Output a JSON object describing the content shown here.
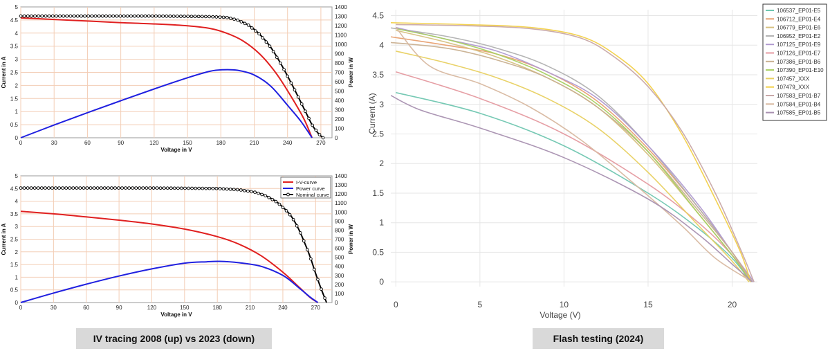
{
  "captions": {
    "left": "IV tracing 2008 (up) vs 2023 (down)",
    "right": "Flash testing (2024)"
  },
  "chart_data": [
    {
      "id": "iv2008",
      "type": "line",
      "title": "",
      "xlabel": "Voltage in V",
      "ylabel": "Current in A",
      "y2label": "Power in W",
      "xlim": [
        0,
        280
      ],
      "ylim": [
        0,
        5
      ],
      "y2lim": [
        0,
        1400
      ],
      "xticks": [
        "0",
        "30",
        "60",
        "90",
        "120",
        "150",
        "180",
        "210",
        "240",
        "270"
      ],
      "yticks": [
        "0",
        "0.5",
        "1",
        "1.5",
        "2",
        "2.5",
        "3",
        "3.5",
        "4",
        "4.5",
        "5"
      ],
      "y2ticks": [
        "0",
        "100",
        "200",
        "300",
        "400",
        "500",
        "600",
        "700",
        "800",
        "900",
        "1000",
        "1100",
        "1200",
        "1300",
        "1400"
      ],
      "legend": null,
      "series": [
        {
          "name": "I-V-curve",
          "color": "#e02020",
          "axis": "left",
          "x": [
            0,
            30,
            60,
            90,
            120,
            150,
            170,
            185,
            200,
            215,
            230,
            245,
            255,
            262
          ],
          "y": [
            4.58,
            4.52,
            4.46,
            4.4,
            4.35,
            4.28,
            4.18,
            4.0,
            3.7,
            3.2,
            2.45,
            1.45,
            0.7,
            0.0
          ]
        },
        {
          "name": "Power curve",
          "color": "#2020e0",
          "axis": "right",
          "x": [
            0,
            30,
            60,
            90,
            120,
            150,
            170,
            182,
            195,
            210,
            225,
            240,
            252,
            262
          ],
          "y": [
            0,
            136,
            268,
            396,
            522,
            642,
            711,
            728,
            722,
            672,
            551,
            348,
            176,
            0
          ]
        },
        {
          "name": "Nominal curve",
          "color": "#000000",
          "axis": "left",
          "markers": true,
          "x": [
            0,
            30,
            60,
            90,
            120,
            150,
            170,
            185,
            195,
            205,
            215,
            225,
            235,
            245,
            255,
            262,
            268,
            272
          ],
          "y": [
            4.65,
            4.65,
            4.65,
            4.65,
            4.65,
            4.64,
            4.63,
            4.6,
            4.5,
            4.3,
            3.95,
            3.45,
            2.75,
            1.95,
            1.1,
            0.5,
            0.15,
            0.0
          ]
        }
      ]
    },
    {
      "id": "iv2023",
      "type": "line",
      "title": "",
      "xlabel": "Voltage in V",
      "ylabel": "Current in A",
      "y2label": "Power in W",
      "xlim": [
        0,
        285
      ],
      "ylim": [
        0,
        5
      ],
      "y2lim": [
        0,
        1400
      ],
      "xticks": [
        "0",
        "30",
        "60",
        "90",
        "120",
        "150",
        "180",
        "210",
        "240",
        "270"
      ],
      "yticks": [
        "0",
        "0.5",
        "1",
        "1.5",
        "2",
        "2.5",
        "3",
        "3.5",
        "4",
        "4.5",
        "5"
      ],
      "y2ticks": [
        "0",
        "100",
        "200",
        "300",
        "400",
        "500",
        "600",
        "700",
        "800",
        "900",
        "1000",
        "1100",
        "1200",
        "1300",
        "1400"
      ],
      "legend": "top-right",
      "series": [
        {
          "name": "I-V-curve",
          "color": "#e02020",
          "axis": "left",
          "x": [
            0,
            30,
            60,
            90,
            120,
            150,
            180,
            200,
            220,
            240,
            255,
            265,
            272
          ],
          "y": [
            3.6,
            3.5,
            3.38,
            3.25,
            3.1,
            2.9,
            2.6,
            2.3,
            1.85,
            1.2,
            0.6,
            0.2,
            0.0
          ]
        },
        {
          "name": "Power curve",
          "color": "#2020e0",
          "axis": "right",
          "x": [
            0,
            30,
            60,
            90,
            120,
            150,
            170,
            182,
            200,
            220,
            240,
            255,
            265,
            272
          ],
          "y": [
            0,
            105,
            203,
            293,
            372,
            435,
            450,
            455,
            440,
            400,
            300,
            160,
            60,
            0
          ]
        },
        {
          "name": "Nominal curve",
          "color": "#000000",
          "axis": "left",
          "markers": true,
          "x": [
            0,
            30,
            60,
            90,
            120,
            150,
            180,
            200,
            215,
            225,
            235,
            245,
            250,
            255,
            260,
            265,
            270,
            275,
            280
          ],
          "y": [
            4.52,
            4.52,
            4.52,
            4.52,
            4.52,
            4.51,
            4.5,
            4.45,
            4.35,
            4.2,
            3.95,
            3.55,
            3.25,
            2.85,
            2.35,
            1.8,
            1.15,
            0.55,
            0.0
          ]
        }
      ]
    },
    {
      "id": "flash2024",
      "type": "line",
      "title": "",
      "xlabel": "Voltage   (V)",
      "ylabel": "Current   (A)",
      "xlim": [
        -0.3,
        21.5
      ],
      "ylim": [
        -0.08,
        4.6
      ],
      "xticks": [
        "0",
        "5",
        "10",
        "15",
        "20"
      ],
      "yticks": [
        "0",
        "0.5",
        "1",
        "1.5",
        "2",
        "2.5",
        "3",
        "3.5",
        "4",
        "4.5"
      ],
      "legend": "top-right",
      "series": [
        {
          "name": "106537_EP01-E5",
          "color": "#6fc6b0",
          "x": [
            0,
            5,
            10,
            15,
            18,
            20,
            21.1
          ],
          "y": [
            3.2,
            2.85,
            2.3,
            1.5,
            0.9,
            0.4,
            0
          ]
        },
        {
          "name": "106712_EP01-E4",
          "color": "#e8a070",
          "x": [
            -0.5,
            3,
            6,
            9,
            12,
            15,
            18,
            20,
            21.1
          ],
          "y": [
            4.15,
            4.0,
            3.85,
            3.55,
            3.05,
            2.25,
            1.25,
            0.5,
            0
          ]
        },
        {
          "name": "106779_EP01-E6",
          "color": "#d6c080",
          "x": [
            0,
            3,
            6,
            9,
            12,
            15,
            18,
            20,
            21.2
          ],
          "y": [
            4.25,
            4.05,
            3.8,
            3.45,
            2.95,
            2.15,
            1.15,
            0.45,
            0
          ]
        },
        {
          "name": "106952_EP01-E2",
          "color": "#b0b0b0",
          "x": [
            -0.5,
            3,
            6,
            9,
            12,
            15,
            18,
            20,
            21.2
          ],
          "y": [
            4.3,
            4.15,
            3.95,
            3.65,
            3.15,
            2.3,
            1.25,
            0.5,
            0
          ]
        },
        {
          "name": "107125_EP01-E9",
          "color": "#b09ad0",
          "x": [
            0,
            3,
            6,
            9,
            12,
            15,
            18,
            20,
            21.3
          ],
          "y": [
            4.3,
            4.1,
            3.9,
            3.55,
            3.1,
            2.3,
            1.3,
            0.5,
            0
          ]
        },
        {
          "name": "107126_EP01-E7",
          "color": "#e59aa0",
          "x": [
            0,
            5,
            10,
            15,
            18,
            20,
            21.1
          ],
          "y": [
            3.55,
            3.1,
            2.5,
            1.65,
            1.0,
            0.45,
            0
          ]
        },
        {
          "name": "107386_EP01-B6",
          "color": "#c9b090",
          "x": [
            -0.5,
            3,
            6,
            9,
            12,
            15,
            18,
            20,
            21.2
          ],
          "y": [
            4.05,
            3.95,
            3.75,
            3.45,
            2.95,
            2.2,
            1.2,
            0.5,
            0
          ]
        },
        {
          "name": "107390_EP01-E10",
          "color": "#a8d060",
          "x": [
            0,
            3,
            6,
            9,
            12,
            15,
            18,
            20,
            21.1
          ],
          "y": [
            4.28,
            4.1,
            3.85,
            3.5,
            3.0,
            2.2,
            1.15,
            0.45,
            0
          ]
        },
        {
          "name": "107457_XXX",
          "color": "#e8d060",
          "x": [
            0,
            3,
            6,
            9,
            12,
            15,
            18,
            20,
            21.0
          ],
          "y": [
            3.9,
            3.7,
            3.45,
            3.1,
            2.6,
            1.85,
            0.95,
            0.35,
            0
          ]
        },
        {
          "name": "107479_XXX",
          "color": "#f2d048",
          "x": [
            -0.3,
            4,
            8,
            11,
            13,
            15,
            17,
            19,
            20.5,
            21.1
          ],
          "y": [
            4.38,
            4.35,
            4.3,
            4.15,
            3.85,
            3.35,
            2.5,
            1.4,
            0.5,
            0
          ]
        },
        {
          "name": "107583_EP01-B7",
          "color": "#c8a8a8",
          "x": [
            0,
            4,
            8,
            11,
            13,
            15,
            17,
            19,
            20.5,
            21.3
          ],
          "y": [
            4.35,
            4.33,
            4.28,
            4.12,
            3.8,
            3.3,
            2.55,
            1.5,
            0.55,
            0
          ]
        },
        {
          "name": "107584_EP01-B4",
          "color": "#d8b8a0",
          "x": [
            0,
            2,
            5,
            8,
            11,
            14,
            17,
            19,
            21.2
          ],
          "y": [
            4.3,
            3.65,
            3.35,
            2.95,
            2.4,
            1.7,
            0.95,
            0.4,
            0
          ]
        },
        {
          "name": "107585_EP01-B5",
          "color": "#a890b0",
          "x": [
            -0.3,
            1.5,
            5,
            10,
            15,
            18,
            20,
            21.2
          ],
          "y": [
            3.15,
            2.9,
            2.6,
            2.1,
            1.4,
            0.8,
            0.3,
            0
          ]
        }
      ]
    }
  ]
}
